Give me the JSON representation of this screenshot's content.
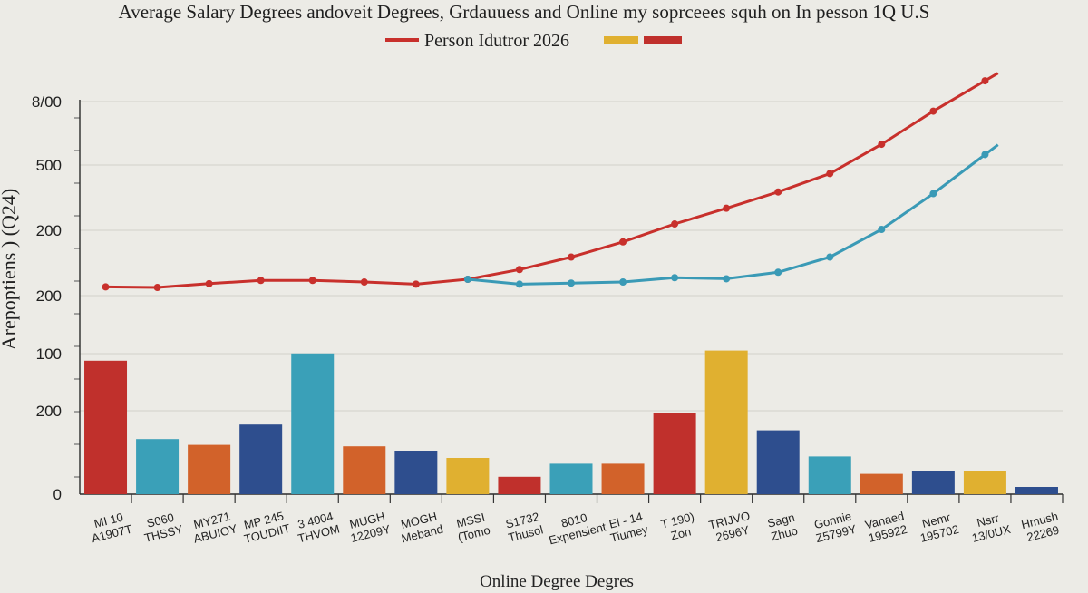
{
  "chart_data": {
    "type": "bar",
    "title": "Average Salary Degrees andoveit Degrees, Grdauuess and Online my soprceees squh on In pesson 1Q U.S",
    "legend_label": "Person Idutror 2026",
    "xlabel": "Online Degree Degres",
    "ylabel": "Arepoptiens ) (Q24)",
    "y_tick_labels": [
      "0",
      "200",
      "100",
      "200",
      "200",
      "500",
      "8/00"
    ],
    "categories": [
      "MI 10\nA1907T",
      "S060\nTHSSY",
      "MY271\nABUIOY",
      "MP 245\nTOUDIIT",
      "3 4004\nTHVOM",
      "MUGH\n12209Y",
      "MOGH\nMeband",
      "MSSI\n(Tomo",
      "S1732\nThusol",
      "8010\nExpensient",
      "El - 14\nTiumey",
      "T 190)\nZon",
      "TRIJVO\n2696Y",
      "Sagn\nZhuo",
      "Gonnie\nZ5799Y",
      "Vanaed\n195922",
      "Nemr\n195702",
      "Nsrr\n13/0UX",
      "Hmush\n22269"
    ],
    "bars": {
      "values": [
        92,
        38,
        34,
        48,
        97,
        33,
        30,
        25,
        12,
        21,
        21,
        56,
        99,
        44,
        26,
        14,
        16,
        16,
        5
      ],
      "colors": [
        "#c0302c",
        "#3aa0b8",
        "#d2622a",
        "#2e4e8e",
        "#3aa0b8",
        "#d2622a",
        "#2e4e8e",
        "#e0b030",
        "#c0302c",
        "#3aa0b8",
        "#d2622a",
        "#c0302c",
        "#e0b030",
        "#2e4e8e",
        "#3aa0b8",
        "#d2622a",
        "#2e4e8e",
        "#e0b030",
        "#2e4e8e"
      ]
    },
    "series": [
      {
        "color": "#c8302c",
        "x": [
          1,
          2,
          3,
          4,
          5,
          6,
          7,
          8,
          9,
          10,
          11,
          12,
          13,
          14,
          15,
          16,
          17,
          18
        ],
        "values": [
          123,
          122,
          129,
          135,
          135,
          132,
          128,
          137,
          155,
          178,
          206,
          239,
          268,
          298,
          332,
          386,
          447,
          503
        ]
      },
      {
        "color": "#3a9ab6",
        "x": [
          8,
          9,
          10,
          11,
          12,
          13,
          14,
          15,
          16,
          17,
          18
        ],
        "values": [
          137,
          128,
          130,
          132,
          140,
          138,
          150,
          178,
          229,
          295,
          367
        ]
      }
    ],
    "legend_colors": [
      "#c8302c",
      "#e0b030",
      "#c0302c"
    ],
    "ylim": [
      0,
      560
    ],
    "grid": true,
    "legend_placement": "top-center"
  }
}
